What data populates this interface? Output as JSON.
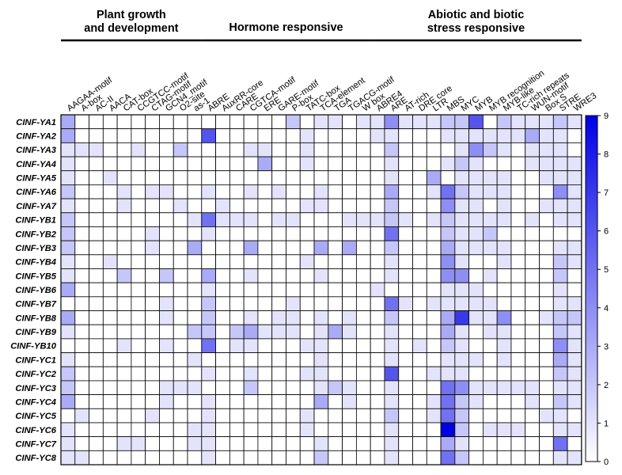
{
  "chart_data": {
    "type": "heatmap",
    "title": "",
    "xlabel": "",
    "ylabel": "",
    "groups": [
      {
        "name_lines": [
          "Plant growth",
          "and development"
        ],
        "start": 0,
        "end": 9
      },
      {
        "name_lines": [
          "Hormone responsive"
        ],
        "start": 10,
        "end": 21
      },
      {
        "name_lines": [
          "Abiotic and biotic",
          "stress responsive"
        ],
        "start": 22,
        "end": 36
      }
    ],
    "columns": [
      "AAGAA-motif",
      "A-box",
      "AC-II",
      "AACA",
      "CAT-box",
      "CCGTCC-motif",
      "CTAG-motif",
      "GCN4_motif",
      "O2-site",
      "as-1",
      "ABRE",
      "AuxRR-core",
      "CARE",
      "CGTCA-motif",
      "ERE",
      "GARE-motif",
      "P-box",
      "TATC-box",
      "TCA-element",
      "TGA",
      "TGACG-motif",
      "W box",
      "ABRE4",
      "ARE",
      "AT-rich",
      "DRE core",
      "LTR",
      "MBS",
      "MYC",
      "MYB",
      "MYB recognition",
      "MYB-like",
      "TC-rich repeats",
      "WUN-motif",
      "Box S",
      "STRE",
      "WRE3"
    ],
    "rows": [
      "CINF-YA1",
      "CINF-YA2",
      "CINF-YA3",
      "CINF-YA4",
      "CINF-YA5",
      "CINF-YA6",
      "CINF-YA7",
      "CINF-YB1",
      "CINF-YB2",
      "CINF-YB3",
      "CINF-YB4",
      "CINF-YB5",
      "CINF-YB6",
      "CINF-YB7",
      "CINF-YB8",
      "CINF-YB9",
      "CINF-YB10",
      "CINF-YC1",
      "CINF-YC2",
      "CINF-YC3",
      "CINF-YC4",
      "CINF-YC5",
      "CINF-YC6",
      "CINF-YC7",
      "CINF-YC8"
    ],
    "values": [
      [
        3,
        0,
        0,
        0,
        0,
        0,
        0,
        0,
        0,
        0,
        0,
        0,
        0,
        0,
        0,
        0,
        2,
        0,
        1,
        1,
        0,
        1,
        1,
        4,
        1,
        1,
        1,
        2,
        2,
        6,
        0,
        2,
        1,
        1,
        1,
        2,
        1
      ],
      [
        3,
        0,
        0,
        0,
        0,
        0,
        0,
        0,
        0,
        0,
        6,
        0,
        0,
        0,
        0,
        0,
        0,
        1,
        0,
        0,
        0,
        0,
        1,
        1,
        0,
        0,
        0,
        1,
        1,
        1,
        1,
        1,
        1,
        3,
        1,
        1,
        0
      ],
      [
        1,
        1,
        1,
        0,
        0,
        1,
        0,
        0,
        2,
        0,
        0,
        0,
        0,
        1,
        1,
        0,
        0,
        1,
        0,
        0,
        0,
        0,
        0,
        2,
        0,
        0,
        0,
        0,
        1,
        4,
        2,
        1,
        0,
        1,
        1,
        1,
        0
      ],
      [
        1,
        0,
        0,
        0,
        0,
        0,
        0,
        0,
        0,
        0,
        0,
        0,
        0,
        0,
        3,
        0,
        0,
        1,
        0,
        0,
        0,
        0,
        0,
        1,
        0,
        0,
        0,
        1,
        2,
        1,
        0,
        0,
        0,
        1,
        1,
        1,
        1
      ],
      [
        1,
        0,
        0,
        1,
        0,
        0,
        0,
        0,
        0,
        0,
        0,
        0,
        0,
        0,
        0,
        0,
        0,
        0,
        0,
        0,
        0,
        0,
        0,
        1,
        0,
        0,
        3,
        0,
        1,
        1,
        1,
        1,
        0,
        0,
        1,
        1,
        1
      ],
      [
        2,
        0,
        0,
        0,
        1,
        0,
        1,
        1,
        0,
        0,
        1,
        0,
        0,
        1,
        0,
        1,
        0,
        0,
        1,
        0,
        0,
        0,
        0,
        3,
        0,
        0,
        1,
        5,
        2,
        1,
        1,
        1,
        0,
        0,
        0,
        4,
        1
      ],
      [
        1,
        0,
        0,
        0,
        1,
        0,
        0,
        0,
        1,
        0,
        0,
        1,
        0,
        0,
        0,
        0,
        0,
        1,
        1,
        0,
        0,
        0,
        0,
        2,
        0,
        0,
        0,
        4,
        1,
        1,
        0,
        1,
        0,
        0,
        1,
        1,
        1
      ],
      [
        2,
        0,
        0,
        0,
        0,
        0,
        0,
        0,
        0,
        1,
        5,
        1,
        1,
        1,
        0,
        1,
        1,
        0,
        0,
        0,
        1,
        1,
        1,
        2,
        1,
        0,
        1,
        2,
        1,
        1,
        1,
        1,
        0,
        1,
        0,
        1,
        1
      ],
      [
        2,
        0,
        0,
        0,
        0,
        0,
        1,
        0,
        0,
        0,
        1,
        0,
        0,
        0,
        0,
        0,
        0,
        0,
        0,
        0,
        0,
        0,
        0,
        5,
        0,
        0,
        0,
        2,
        1,
        1,
        2,
        0,
        0,
        0,
        0,
        0,
        0
      ],
      [
        2,
        0,
        0,
        0,
        0,
        0,
        1,
        0,
        0,
        3,
        0,
        0,
        0,
        3,
        0,
        0,
        0,
        0,
        3,
        0,
        3,
        0,
        0,
        2,
        0,
        0,
        0,
        3,
        1,
        1,
        1,
        1,
        0,
        0,
        0,
        1,
        1
      ],
      [
        1,
        0,
        0,
        1,
        0,
        0,
        0,
        0,
        0,
        0,
        0,
        0,
        0,
        0,
        0,
        0,
        0,
        1,
        0,
        0,
        0,
        0,
        0,
        1,
        0,
        0,
        0,
        4,
        1,
        0,
        0,
        1,
        0,
        0,
        0,
        2,
        1
      ],
      [
        1,
        0,
        0,
        0,
        2,
        0,
        0,
        2,
        0,
        0,
        3,
        0,
        0,
        1,
        0,
        0,
        0,
        0,
        1,
        0,
        0,
        0,
        0,
        1,
        0,
        0,
        0,
        4,
        4,
        0,
        1,
        0,
        0,
        0,
        0,
        2,
        0
      ],
      [
        3,
        0,
        0,
        0,
        0,
        0,
        0,
        0,
        0,
        0,
        1,
        0,
        0,
        0,
        0,
        0,
        0,
        0,
        0,
        0,
        0,
        0,
        1,
        0,
        0,
        0,
        0,
        1,
        1,
        1,
        0,
        0,
        0,
        0,
        0,
        1,
        0
      ],
      [
        0,
        0,
        0,
        0,
        0,
        0,
        0,
        1,
        0,
        0,
        2,
        0,
        0,
        0,
        0,
        0,
        1,
        0,
        0,
        0,
        0,
        0,
        0,
        5,
        1,
        0,
        1,
        1,
        1,
        1,
        1,
        0,
        0,
        0,
        0,
        1,
        1
      ],
      [
        3,
        0,
        0,
        0,
        0,
        0,
        0,
        1,
        0,
        0,
        2,
        0,
        0,
        1,
        0,
        1,
        1,
        0,
        1,
        0,
        1,
        0,
        0,
        2,
        0,
        0,
        0,
        3,
        7,
        1,
        1,
        4,
        0,
        0,
        1,
        2,
        2
      ],
      [
        1,
        0,
        0,
        0,
        0,
        0,
        0,
        0,
        0,
        2,
        2,
        0,
        2,
        3,
        1,
        1,
        1,
        0,
        1,
        3,
        1,
        0,
        0,
        1,
        0,
        0,
        0,
        3,
        1,
        0,
        1,
        1,
        0,
        0,
        0,
        2,
        1
      ],
      [
        0,
        0,
        0,
        0,
        1,
        0,
        0,
        1,
        0,
        0,
        5,
        0,
        1,
        1,
        0,
        0,
        0,
        1,
        1,
        0,
        0,
        0,
        0,
        1,
        0,
        1,
        0,
        2,
        1,
        0,
        0,
        1,
        0,
        0,
        0,
        4,
        1
      ],
      [
        1,
        0,
        0,
        0,
        0,
        0,
        0,
        0,
        0,
        1,
        0,
        0,
        0,
        0,
        0,
        0,
        0,
        0,
        1,
        0,
        0,
        0,
        0,
        1,
        0,
        0,
        0,
        1,
        1,
        1,
        0,
        1,
        0,
        0,
        0,
        3,
        1
      ],
      [
        2,
        0,
        0,
        0,
        0,
        0,
        0,
        0,
        0,
        0,
        1,
        0,
        0,
        1,
        0,
        0,
        0,
        1,
        1,
        0,
        0,
        0,
        0,
        6,
        0,
        0,
        1,
        1,
        1,
        0,
        0,
        0,
        0,
        0,
        0,
        2,
        1
      ],
      [
        2,
        0,
        0,
        0,
        0,
        0,
        0,
        1,
        1,
        1,
        0,
        0,
        0,
        2,
        0,
        0,
        0,
        0,
        1,
        2,
        1,
        0,
        0,
        1,
        0,
        0,
        0,
        5,
        4,
        1,
        1,
        1,
        1,
        1,
        0,
        1,
        1
      ],
      [
        3,
        0,
        0,
        0,
        0,
        0,
        0,
        1,
        0,
        0,
        1,
        0,
        0,
        0,
        0,
        0,
        0,
        0,
        3,
        0,
        1,
        0,
        0,
        1,
        0,
        0,
        1,
        5,
        2,
        1,
        0,
        0,
        0,
        1,
        0,
        2,
        1
      ],
      [
        0,
        1,
        0,
        0,
        0,
        0,
        1,
        0,
        0,
        0,
        1,
        0,
        0,
        0,
        0,
        0,
        0,
        1,
        0,
        0,
        0,
        0,
        0,
        2,
        0,
        0,
        1,
        5,
        2,
        0,
        0,
        0,
        0,
        0,
        1,
        1,
        0
      ],
      [
        1,
        0,
        0,
        0,
        0,
        0,
        0,
        0,
        0,
        1,
        1,
        0,
        0,
        0,
        0,
        0,
        0,
        1,
        0,
        0,
        0,
        0,
        0,
        1,
        0,
        0,
        0,
        9,
        2,
        0,
        1,
        1,
        1,
        0,
        0,
        1,
        1
      ],
      [
        1,
        0,
        0,
        0,
        1,
        1,
        0,
        0,
        0,
        1,
        1,
        0,
        0,
        0,
        0,
        0,
        0,
        0,
        1,
        0,
        0,
        0,
        0,
        1,
        0,
        0,
        0,
        3,
        1,
        0,
        0,
        0,
        0,
        0,
        0,
        5,
        0
      ],
      [
        1,
        1,
        0,
        0,
        0,
        0,
        0,
        0,
        0,
        0,
        1,
        0,
        0,
        0,
        0,
        0,
        0,
        0,
        2,
        0,
        0,
        0,
        0,
        1,
        0,
        0,
        0,
        5,
        2,
        0,
        0,
        0,
        0,
        0,
        0,
        1,
        1
      ]
    ],
    "colorbar": {
      "min": 0,
      "max": 9,
      "ticks": [
        "0",
        "1",
        "2",
        "3",
        "4",
        "5",
        "6",
        "7",
        "8",
        "9"
      ],
      "low_color": "#ffffff",
      "high_color": "#0000e6"
    },
    "grid": true
  }
}
